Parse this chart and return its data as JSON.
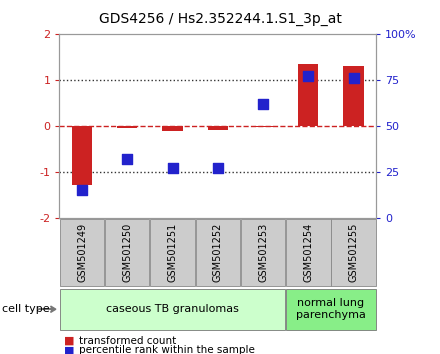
{
  "title": "GDS4256 / Hs2.352244.1.S1_3p_at",
  "samples": [
    "GSM501249",
    "GSM501250",
    "GSM501251",
    "GSM501252",
    "GSM501253",
    "GSM501254",
    "GSM501255"
  ],
  "transformed_counts": [
    -1.3,
    -0.05,
    -0.12,
    -0.1,
    -0.02,
    1.35,
    1.3
  ],
  "percentile_ranks": [
    15,
    32,
    27,
    27,
    62,
    77,
    76
  ],
  "ylim_left": [
    -2,
    2
  ],
  "ylim_right": [
    0,
    100
  ],
  "yticks_left": [
    -2,
    -1,
    0,
    1,
    2
  ],
  "yticks_right": [
    0,
    25,
    50,
    75,
    100
  ],
  "ytick_labels_right": [
    "0",
    "25",
    "50",
    "75",
    "100%"
  ],
  "bar_color": "#cc2222",
  "dot_color": "#2222cc",
  "zero_line_color": "#cc2222",
  "dotted_line_color": "#333333",
  "cell_types": [
    {
      "label": "caseous TB granulomas",
      "samples": [
        0,
        1,
        2,
        3,
        4
      ],
      "color": "#ccffcc"
    },
    {
      "label": "normal lung\nparenchyma",
      "samples": [
        5,
        6
      ],
      "color": "#88ee88"
    }
  ],
  "cell_type_label": "cell type",
  "legend_red": "transformed count",
  "legend_blue": "percentile rank within the sample",
  "bg_color": "#ffffff",
  "plot_bg_color": "#ffffff",
  "tick_area_color": "#cccccc",
  "bar_width": 0.45,
  "dot_size": 45,
  "dot_marker": "s",
  "title_fontsize": 10,
  "axis_fontsize": 8,
  "label_fontsize": 7,
  "legend_fontsize": 7.5
}
